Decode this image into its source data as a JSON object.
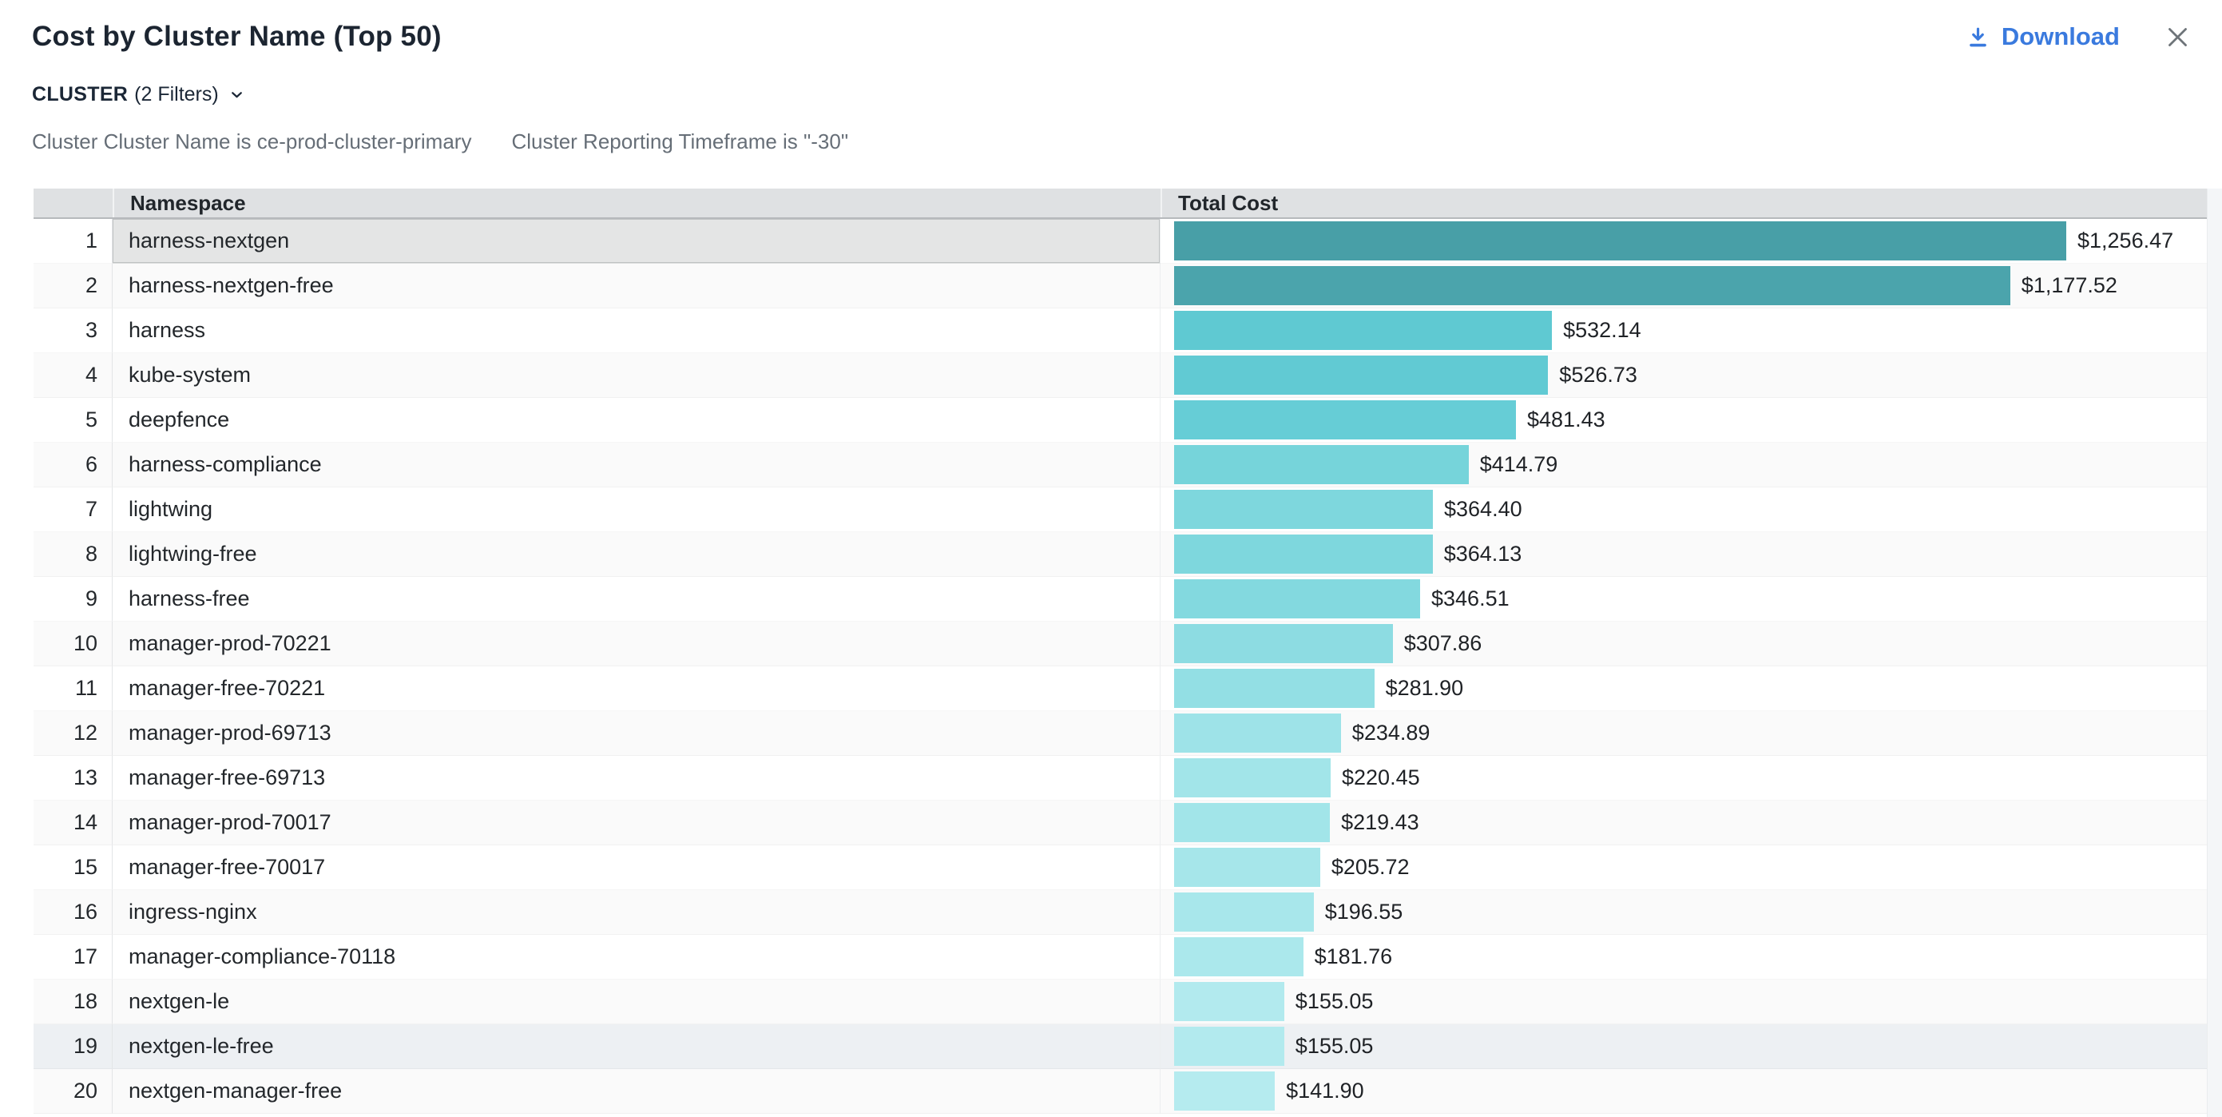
{
  "modal": {
    "title": "Cost by Cluster Name (Top 50)",
    "download_label": "Download"
  },
  "filters": {
    "group_label": "CLUSTER",
    "count_label": "(2 Filters)",
    "applied": [
      {
        "text": "Cluster Cluster Name is ce-prod-cluster-primary"
      },
      {
        "text": "Cluster Reporting Timeframe is \"-30\""
      }
    ]
  },
  "table": {
    "columns": {
      "index": "",
      "namespace": "Namespace",
      "total_cost": "Total Cost"
    },
    "selected_row_rank": 1,
    "highlighted_row_rank": 19
  },
  "chart_data": {
    "type": "bar",
    "orientation": "horizontal",
    "title": "Cost by Cluster Name (Top 50)",
    "xlabel": "Total Cost",
    "xlim": [
      0,
      1256.47
    ],
    "max_value": 1256.47,
    "categories": [
      "harness-nextgen",
      "harness-nextgen-free",
      "harness",
      "kube-system",
      "deepfence",
      "harness-compliance",
      "lightwing",
      "lightwing-free",
      "harness-free",
      "manager-prod-70221",
      "manager-free-70221",
      "manager-prod-69713",
      "manager-free-69713",
      "manager-prod-70017",
      "manager-free-70017",
      "ingress-nginx",
      "manager-compliance-70118",
      "nextgen-le",
      "nextgen-le-free",
      "nextgen-manager-free"
    ],
    "values": [
      1256.47,
      1177.52,
      532.14,
      526.73,
      481.43,
      414.79,
      364.4,
      364.13,
      346.51,
      307.86,
      281.9,
      234.89,
      220.45,
      219.43,
      205.72,
      196.55,
      181.76,
      155.05,
      155.05,
      141.9
    ],
    "value_labels": [
      "$1,256.47",
      "$1,177.52",
      "$532.14",
      "$526.73",
      "$481.43",
      "$414.79",
      "$364.40",
      "$364.13",
      "$346.51",
      "$307.86",
      "$281.90",
      "$234.89",
      "$220.45",
      "$219.43",
      "$205.72",
      "$196.55",
      "$181.76",
      "$155.05",
      "$155.05",
      "$141.90"
    ],
    "bar_colors": [
      "#489fa7",
      "#4ba4ac",
      "#5fc9d2",
      "#61cad3",
      "#66cdd6",
      "#76d4da",
      "#7ed7dd",
      "#7ed7dd",
      "#83d9df",
      "#8ddce2",
      "#93dfe4",
      "#9ee3e8",
      "#a2e5e9",
      "#a2e5e9",
      "#a6e6ea",
      "#a8e7eb",
      "#abe8ec",
      "#b2eaee",
      "#b2eaee",
      "#b5ebef"
    ],
    "accent_colors": {
      "download_blue": "#3a7ade",
      "close_gray": "#6e7479"
    }
  }
}
